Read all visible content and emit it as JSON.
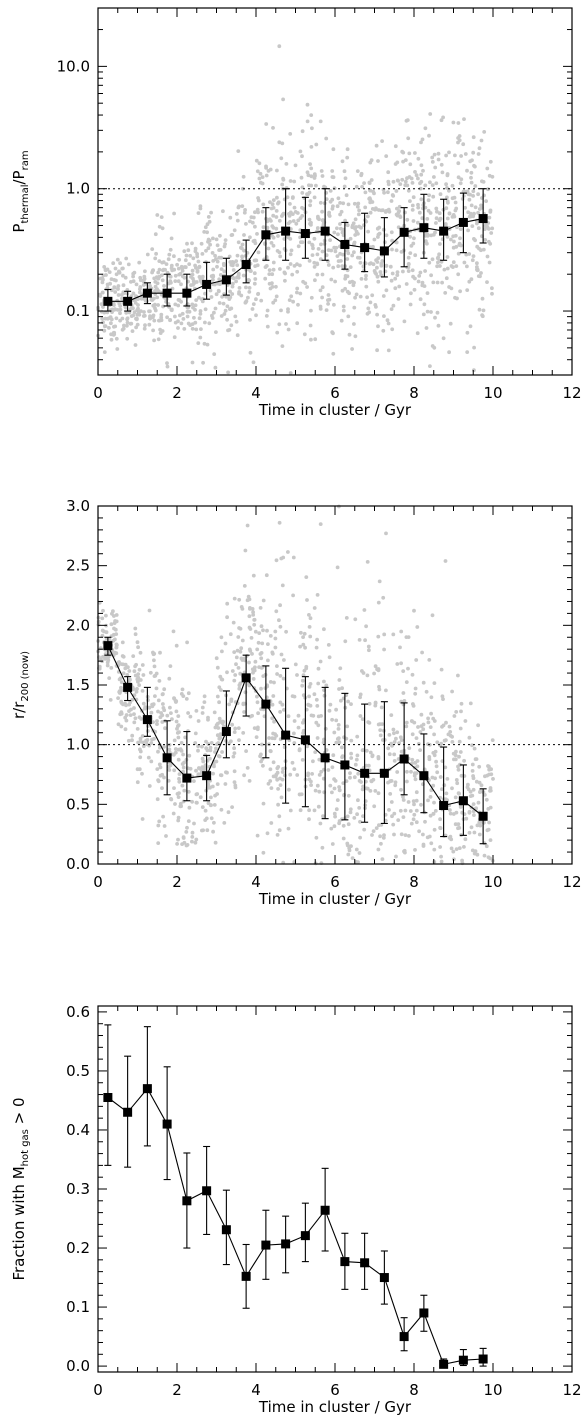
{
  "chart_data": [
    {
      "type": "scatter",
      "xlabel": "Time in cluster / Gyr",
      "ylabel": "P_thermal/P_ram",
      "ylabel_main": "P",
      "ylabel_sub1": "thermal",
      "ylabel_slash": "/P",
      "ylabel_sub2": "ram",
      "xlim": [
        0,
        12
      ],
      "ylim": [
        0.03,
        30
      ],
      "yscale": "log",
      "xticks": [
        0,
        2,
        4,
        6,
        8,
        10,
        12
      ],
      "xtick_labels": [
        "0",
        "2",
        "4",
        "6",
        "8",
        "10",
        "12"
      ],
      "yticks": [
        0.1,
        1.0,
        10.0
      ],
      "ytick_labels": [
        "0.1",
        "1.0",
        "10.0"
      ],
      "reference_line": 1.0,
      "series": [
        {
          "x": [
            0.25,
            0.75,
            1.25,
            1.75,
            2.25,
            2.75,
            3.25,
            3.75,
            4.25,
            4.75,
            5.25,
            5.75,
            6.25,
            6.75,
            7.25,
            7.75,
            8.25,
            8.75,
            9.25,
            9.75
          ],
          "y": [
            0.12,
            0.12,
            0.14,
            0.14,
            0.14,
            0.165,
            0.18,
            0.24,
            0.42,
            0.45,
            0.43,
            0.45,
            0.35,
            0.33,
            0.31,
            0.44,
            0.48,
            0.45,
            0.53,
            0.57
          ],
          "y_low": [
            0.1,
            0.1,
            0.115,
            0.11,
            0.11,
            0.125,
            0.135,
            0.17,
            0.26,
            0.26,
            0.27,
            0.26,
            0.22,
            0.21,
            0.19,
            0.23,
            0.27,
            0.26,
            0.3,
            0.36
          ],
          "y_high": [
            0.15,
            0.145,
            0.17,
            0.2,
            0.2,
            0.25,
            0.27,
            0.38,
            0.7,
            1.0,
            0.85,
            1.0,
            0.53,
            0.63,
            0.58,
            0.7,
            0.9,
            0.82,
            0.92,
            1.0
          ]
        }
      ]
    },
    {
      "type": "scatter",
      "xlabel": "Time in cluster / Gyr",
      "ylabel": "r/r_200 (now)",
      "ylabel_main": "r/r",
      "ylabel_sub": "200 (now)",
      "xlim": [
        0,
        12
      ],
      "ylim": [
        0,
        3.0
      ],
      "yscale": "linear",
      "xticks": [
        0,
        2,
        4,
        6,
        8,
        10,
        12
      ],
      "xtick_labels": [
        "0",
        "2",
        "4",
        "6",
        "8",
        "10",
        "12"
      ],
      "yticks": [
        0.0,
        0.5,
        1.0,
        1.5,
        2.0,
        2.5,
        3.0
      ],
      "ytick_labels": [
        "0.0",
        "0.5",
        "1.0",
        "1.5",
        "2.0",
        "2.5",
        "3.0"
      ],
      "reference_line": 1.0,
      "series": [
        {
          "x": [
            0.25,
            0.75,
            1.25,
            1.75,
            2.25,
            2.75,
            3.25,
            3.75,
            4.25,
            4.75,
            5.25,
            5.75,
            6.25,
            6.75,
            7.25,
            7.75,
            8.25,
            8.75,
            9.25,
            9.75
          ],
          "y": [
            1.83,
            1.48,
            1.21,
            0.89,
            0.72,
            0.74,
            1.11,
            1.56,
            1.34,
            1.08,
            1.04,
            0.89,
            0.83,
            0.76,
            0.76,
            0.88,
            0.74,
            0.49,
            0.53,
            0.4
          ],
          "y_low": [
            1.75,
            1.37,
            1.07,
            0.58,
            0.53,
            0.53,
            0.89,
            1.24,
            0.89,
            0.51,
            0.48,
            0.38,
            0.37,
            0.35,
            0.34,
            0.58,
            0.43,
            0.23,
            0.24,
            0.17
          ],
          "y_high": [
            1.9,
            1.57,
            1.48,
            1.2,
            1.11,
            0.91,
            1.45,
            1.75,
            1.66,
            1.64,
            1.57,
            1.48,
            1.43,
            1.34,
            1.36,
            1.35,
            1.09,
            0.98,
            0.83,
            0.63
          ]
        }
      ]
    },
    {
      "type": "line",
      "xlabel": "Time in cluster / Gyr",
      "ylabel": "Fraction with M_hot gas > 0",
      "ylabel_pre": "Fraction with M",
      "ylabel_sub": "hot gas",
      "ylabel_post": " > 0",
      "xlim": [
        0,
        12
      ],
      "ylim": [
        -0.01,
        0.61
      ],
      "yscale": "linear",
      "xticks": [
        0,
        2,
        4,
        6,
        8,
        10,
        12
      ],
      "xtick_labels": [
        "0",
        "2",
        "4",
        "6",
        "8",
        "10",
        "12"
      ],
      "yticks": [
        0.0,
        0.1,
        0.2,
        0.3,
        0.4,
        0.5,
        0.6
      ],
      "ytick_labels": [
        "0.0",
        "0.1",
        "0.2",
        "0.3",
        "0.4",
        "0.5",
        "0.6"
      ],
      "series": [
        {
          "x": [
            0.25,
            0.75,
            1.25,
            1.75,
            2.25,
            2.75,
            3.25,
            3.75,
            4.25,
            4.75,
            5.25,
            5.75,
            6.25,
            6.75,
            7.25,
            7.75,
            8.25,
            8.75,
            9.25,
            9.75
          ],
          "y": [
            0.455,
            0.43,
            0.47,
            0.41,
            0.28,
            0.297,
            0.231,
            0.152,
            0.205,
            0.207,
            0.221,
            0.264,
            0.177,
            0.175,
            0.15,
            0.05,
            0.09,
            0.003,
            0.01,
            0.012
          ],
          "y_low": [
            0.34,
            0.337,
            0.373,
            0.316,
            0.2,
            0.223,
            0.172,
            0.098,
            0.147,
            0.158,
            0.177,
            0.195,
            0.13,
            0.13,
            0.105,
            0.026,
            0.059,
            0.0,
            0.001,
            0.0
          ],
          "y_high": [
            0.578,
            0.525,
            0.575,
            0.507,
            0.361,
            0.372,
            0.298,
            0.206,
            0.264,
            0.254,
            0.276,
            0.335,
            0.225,
            0.225,
            0.195,
            0.082,
            0.12,
            0.012,
            0.028,
            0.03
          ]
        }
      ]
    }
  ]
}
